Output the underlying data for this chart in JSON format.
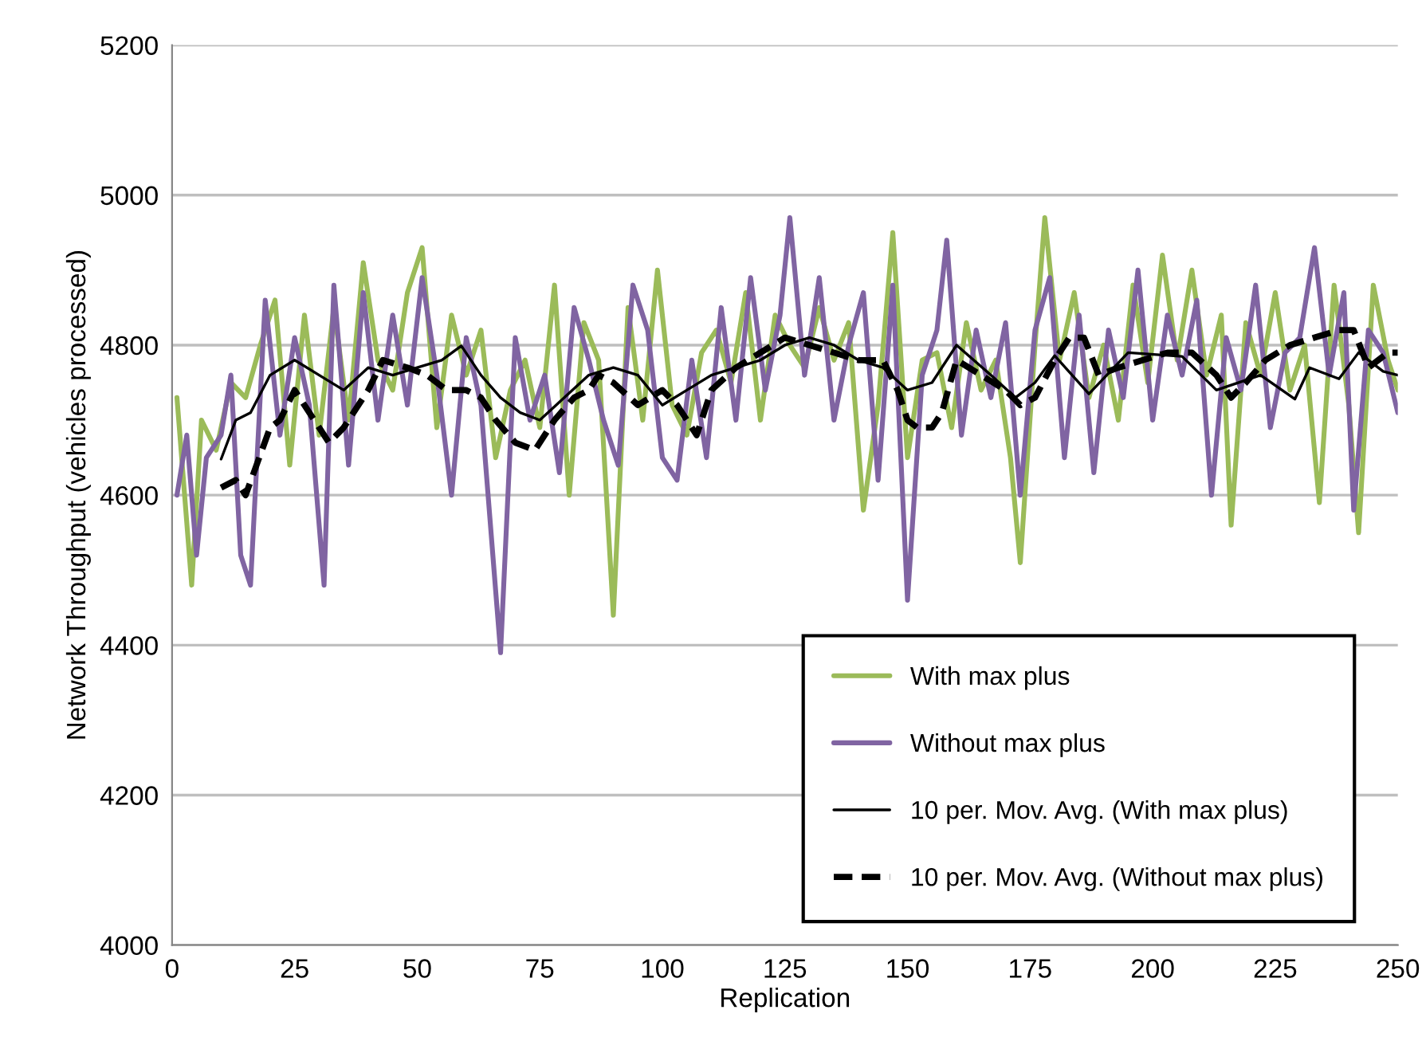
{
  "chart_data": {
    "type": "line",
    "xlabel": "Replication",
    "ylabel": "Network Throughput (vehicles processed)",
    "xlim": [
      0,
      250
    ],
    "xticks": [
      0,
      25,
      50,
      75,
      100,
      125,
      150,
      175,
      200,
      225,
      250
    ],
    "ylim": [
      4000,
      5200
    ],
    "yticks": [
      4000,
      4200,
      4400,
      4600,
      4800,
      5000,
      5200
    ],
    "grid": "y",
    "legend": "bottom right",
    "marker": "none",
    "series": [
      {
        "name": "With max plus",
        "color": "#9bbb59",
        "line_style": "solid",
        "x": [
          1,
          4,
          6,
          9,
          12,
          15,
          18,
          21,
          24,
          27,
          30,
          33,
          36,
          39,
          42,
          45,
          48,
          51,
          54,
          57,
          60,
          63,
          66,
          69,
          72,
          75,
          78,
          81,
          84,
          87,
          90,
          93,
          96,
          99,
          102,
          105,
          108,
          111,
          114,
          117,
          120,
          123,
          126,
          129,
          132,
          135,
          138,
          141,
          144,
          147,
          150,
          153,
          156,
          159,
          162,
          165,
          168,
          171,
          173,
          176,
          178,
          181,
          184,
          187,
          190,
          193,
          196,
          199,
          202,
          205,
          208,
          211,
          214,
          216,
          219,
          222,
          225,
          228,
          231,
          234,
          237,
          240,
          242,
          245,
          248,
          250
        ],
        "values": [
          4730,
          4480,
          4700,
          4660,
          4750,
          4730,
          4800,
          4860,
          4640,
          4840,
          4680,
          4850,
          4700,
          4910,
          4780,
          4740,
          4870,
          4930,
          4690,
          4840,
          4760,
          4820,
          4650,
          4740,
          4780,
          4690,
          4880,
          4600,
          4830,
          4780,
          4440,
          4850,
          4700,
          4900,
          4720,
          4680,
          4790,
          4820,
          4750,
          4870,
          4700,
          4840,
          4800,
          4770,
          4850,
          4780,
          4830,
          4580,
          4720,
          4950,
          4650,
          4780,
          4790,
          4690,
          4830,
          4740,
          4780,
          4650,
          4510,
          4800,
          4970,
          4780,
          4870,
          4730,
          4800,
          4700,
          4880,
          4750,
          4920,
          4780,
          4900,
          4760,
          4840,
          4560,
          4830,
          4760,
          4870,
          4740,
          4800,
          4590,
          4880,
          4720,
          4550,
          4880,
          4780,
          4740
        ]
      },
      {
        "name": "Without max plus",
        "color": "#8064a2",
        "line_style": "solid",
        "x": [
          1,
          3,
          5,
          7,
          10,
          12,
          14,
          16,
          19,
          22,
          25,
          28,
          31,
          33,
          36,
          39,
          42,
          45,
          48,
          51,
          54,
          57,
          60,
          63,
          67,
          70,
          73,
          76,
          79,
          82,
          85,
          88,
          91,
          94,
          97,
          100,
          103,
          106,
          109,
          112,
          115,
          118,
          121,
          124,
          126,
          129,
          132,
          135,
          138,
          141,
          144,
          147,
          150,
          153,
          156,
          158,
          161,
          164,
          167,
          170,
          173,
          176,
          179,
          182,
          185,
          188,
          191,
          194,
          197,
          200,
          203,
          206,
          209,
          212,
          215,
          218,
          221,
          224,
          227,
          230,
          233,
          236,
          239,
          241,
          244,
          247,
          250
        ],
        "values": [
          4600,
          4680,
          4520,
          4650,
          4680,
          4760,
          4520,
          4480,
          4860,
          4680,
          4810,
          4720,
          4480,
          4880,
          4640,
          4870,
          4700,
          4840,
          4720,
          4890,
          4760,
          4600,
          4810,
          4720,
          4390,
          4810,
          4700,
          4760,
          4630,
          4850,
          4780,
          4700,
          4640,
          4880,
          4820,
          4650,
          4620,
          4780,
          4650,
          4850,
          4700,
          4890,
          4740,
          4840,
          4970,
          4760,
          4890,
          4700,
          4800,
          4870,
          4620,
          4880,
          4460,
          4760,
          4820,
          4940,
          4680,
          4820,
          4730,
          4830,
          4600,
          4820,
          4890,
          4650,
          4840,
          4630,
          4820,
          4730,
          4900,
          4700,
          4840,
          4760,
          4860,
          4600,
          4810,
          4740,
          4880,
          4690,
          4790,
          4810,
          4930,
          4760,
          4870,
          4580,
          4820,
          4790,
          4710
        ]
      },
      {
        "name": "10 per. Mov. Avg. (With max plus)",
        "color": "#000000",
        "line_style": "solid",
        "x": [
          10,
          13,
          16,
          20,
          25,
          30,
          35,
          40,
          45,
          50,
          55,
          59,
          63,
          67,
          71,
          75,
          80,
          85,
          90,
          95,
          100,
          105,
          110,
          115,
          120,
          125,
          130,
          135,
          140,
          145,
          150,
          155,
          160,
          167,
          172,
          176,
          180,
          187,
          195,
          206,
          213,
          222,
          229,
          232,
          238,
          242,
          247,
          250
        ],
        "values": [
          4648,
          4700,
          4710,
          4760,
          4780,
          4760,
          4740,
          4770,
          4760,
          4770,
          4780,
          4799,
          4760,
          4730,
          4710,
          4700,
          4730,
          4760,
          4770,
          4760,
          4720,
          4740,
          4760,
          4770,
          4780,
          4800,
          4810,
          4800,
          4780,
          4770,
          4740,
          4750,
          4800,
          4760,
          4730,
          4750,
          4786,
          4735,
          4790,
          4785,
          4740,
          4760,
          4728,
          4770,
          4755,
          4790,
          4765,
          4760
        ]
      },
      {
        "name": "10 per. Mov. Avg. (Without max plus)",
        "color": "#000000",
        "line_style": "dashed",
        "x": [
          10,
          13,
          15,
          20,
          22,
          25,
          30,
          32,
          35,
          40,
          43,
          48,
          52,
          56,
          60,
          63,
          66,
          70,
          74,
          78,
          82,
          85,
          87,
          90,
          95,
          100,
          103,
          105,
          107,
          110,
          115,
          120,
          125,
          130,
          135,
          140,
          145,
          148,
          150,
          152,
          155,
          157,
          160,
          165,
          170,
          173,
          176,
          180,
          183,
          186,
          189,
          193,
          198,
          203,
          208,
          213,
          216,
          219,
          223,
          228,
          233,
          238,
          241,
          244,
          248,
          250
        ],
        "values": [
          4610,
          4620,
          4600,
          4690,
          4700,
          4740,
          4690,
          4670,
          4690,
          4740,
          4780,
          4770,
          4760,
          4740,
          4740,
          4730,
          4700,
          4670,
          4660,
          4700,
          4730,
          4740,
          4760,
          4750,
          4720,
          4740,
          4720,
          4700,
          4680,
          4740,
          4770,
          4790,
          4810,
          4800,
          4790,
          4780,
          4780,
          4740,
          4700,
          4690,
          4690,
          4710,
          4780,
          4760,
          4740,
          4720,
          4730,
          4780,
          4810,
          4810,
          4760,
          4770,
          4780,
          4790,
          4790,
          4760,
          4730,
          4750,
          4780,
          4800,
          4810,
          4820,
          4820,
          4770,
          4790,
          4790
        ]
      }
    ]
  }
}
